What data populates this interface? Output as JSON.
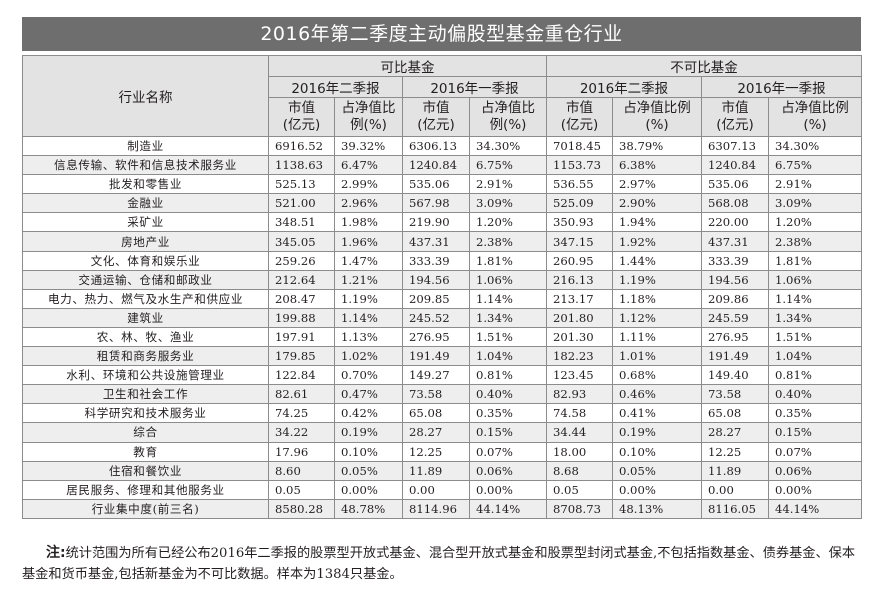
{
  "title": "2016年第二季度主动偏股型基金重仓行业",
  "header": {
    "industry": "行业名称",
    "group_comparable": "可比基金",
    "group_noncomparable": "不可比基金",
    "q2": "2016年二季报",
    "q1": "2016年一季报",
    "mv_line1": "市值",
    "mv_line2": "(亿元)",
    "pct_short_line1": "占净值比",
    "pct_short_line2": "例(%)",
    "pct_long_line1": "占净值比例",
    "pct_long_line2": "(%)"
  },
  "rows": [
    [
      "制造业",
      "6916.52",
      "39.32%",
      "6306.13",
      "34.30%",
      "7018.45",
      "38.79%",
      "6307.13",
      "34.30%"
    ],
    [
      "信息传输、软件和信息技术服务业",
      "1138.63",
      "6.47%",
      "1240.84",
      "6.75%",
      "1153.73",
      "6.38%",
      "1240.84",
      "6.75%"
    ],
    [
      "批发和零售业",
      "525.13",
      "2.99%",
      "535.06",
      "2.91%",
      "536.55",
      "2.97%",
      "535.06",
      "2.91%"
    ],
    [
      "金融业",
      "521.00",
      "2.96%",
      "567.98",
      "3.09%",
      "525.09",
      "2.90%",
      "568.08",
      "3.09%"
    ],
    [
      "采矿业",
      "348.51",
      "1.98%",
      "219.90",
      "1.20%",
      "350.93",
      "1.94%",
      "220.00",
      "1.20%"
    ],
    [
      "房地产业",
      "345.05",
      "1.96%",
      "437.31",
      "2.38%",
      "347.15",
      "1.92%",
      "437.31",
      "2.38%"
    ],
    [
      "文化、体育和娱乐业",
      "259.26",
      "1.47%",
      "333.39",
      "1.81%",
      "260.95",
      "1.44%",
      "333.39",
      "1.81%"
    ],
    [
      "交通运输、仓储和邮政业",
      "212.64",
      "1.21%",
      "194.56",
      "1.06%",
      "216.13",
      "1.19%",
      "194.56",
      "1.06%"
    ],
    [
      "电力、热力、燃气及水生产和供应业",
      "208.47",
      "1.19%",
      "209.85",
      "1.14%",
      "213.17",
      "1.18%",
      "209.86",
      "1.14%"
    ],
    [
      "建筑业",
      "199.88",
      "1.14%",
      "245.52",
      "1.34%",
      "201.80",
      "1.12%",
      "245.59",
      "1.34%"
    ],
    [
      "农、林、牧、渔业",
      "197.91",
      "1.13%",
      "276.95",
      "1.51%",
      "201.30",
      "1.11%",
      "276.95",
      "1.51%"
    ],
    [
      "租赁和商务服务业",
      "179.85",
      "1.02%",
      "191.49",
      "1.04%",
      "182.23",
      "1.01%",
      "191.49",
      "1.04%"
    ],
    [
      "水利、环境和公共设施管理业",
      "122.84",
      "0.70%",
      "149.27",
      "0.81%",
      "123.45",
      "0.68%",
      "149.40",
      "0.81%"
    ],
    [
      "卫生和社会工作",
      "82.61",
      "0.47%",
      "73.58",
      "0.40%",
      "82.93",
      "0.46%",
      "73.58",
      "0.40%"
    ],
    [
      "科学研究和技术服务业",
      "74.25",
      "0.42%",
      "65.08",
      "0.35%",
      "74.58",
      "0.41%",
      "65.08",
      "0.35%"
    ],
    [
      "综合",
      "34.22",
      "0.19%",
      "28.27",
      "0.15%",
      "34.44",
      "0.19%",
      "28.27",
      "0.15%"
    ],
    [
      "教育",
      "17.96",
      "0.10%",
      "12.25",
      "0.07%",
      "18.00",
      "0.10%",
      "12.25",
      "0.07%"
    ],
    [
      "住宿和餐饮业",
      "8.60",
      "0.05%",
      "11.89",
      "0.06%",
      "8.68",
      "0.05%",
      "11.89",
      "0.06%"
    ],
    [
      "居民服务、修理和其他服务业",
      "0.05",
      "0.00%",
      "0.00",
      "0.00%",
      "0.05",
      "0.00%",
      "0.00",
      "0.00%"
    ],
    [
      "行业集中度(前三名)",
      "8580.28",
      "48.78%",
      "8114.96",
      "44.14%",
      "8708.73",
      "48.13%",
      "8116.05",
      "44.14%"
    ]
  ],
  "note": {
    "label": "注:",
    "text": "统计范围为所有已经公布2016年二季报的股票型开放式基金、混合型开放式基金和股票型封闭式基金,不包括指数基金、债券基金、保本基金和货币基金,包括新基金为不可比数据。样本为1384只基金。"
  }
}
